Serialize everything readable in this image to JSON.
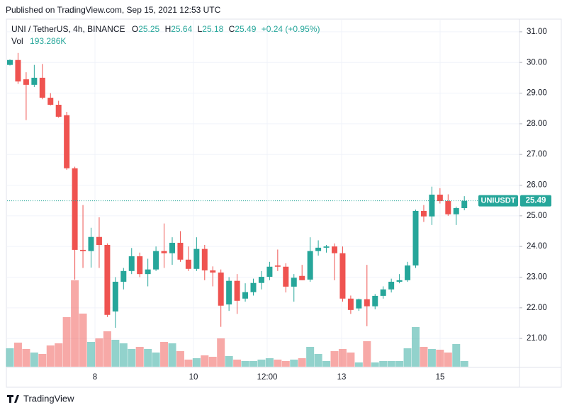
{
  "published": "Published on TradingView.com, Sep 15, 2021 12:53 UTC",
  "footer": "TradingView",
  "chart_data": {
    "type": "candlestick",
    "title": "UNI / TetherUS, 4h, BINANCE",
    "legend": [
      {
        "label": "O",
        "value": 25.25
      },
      {
        "label": "H",
        "value": 25.64
      },
      {
        "label": "L",
        "value": 25.18
      },
      {
        "label": "C",
        "value": 25.49
      }
    ],
    "change": "+0.24 (+0.95%)",
    "up_color": "#26a69a",
    "down_color": "#ef5350",
    "grid": true,
    "ylim": [
      20.08,
      31.39
    ],
    "yticks": [
      {
        "value": 21,
        "label": "21.00"
      },
      {
        "value": 22,
        "label": "22.00"
      },
      {
        "value": 23,
        "label": "23.00"
      },
      {
        "value": 24,
        "label": "24.00"
      },
      {
        "value": 25,
        "label": "25.00"
      },
      {
        "value": 26,
        "label": "26.00"
      },
      {
        "value": 27,
        "label": "27.00"
      },
      {
        "value": 28,
        "label": "28.00"
      },
      {
        "value": 29,
        "label": "29.00"
      },
      {
        "value": 30,
        "label": "30.00"
      },
      {
        "value": 31,
        "label": "31.00"
      }
    ],
    "xlabels": [
      "8",
      "10",
      "12:00",
      "13",
      "15"
    ],
    "symbol": "UNIUSDT",
    "last_price": 25.49,
    "open": [
      29.92,
      30.08,
      29.45,
      29.27,
      29.5,
      28.85,
      28.62,
      28.28,
      26.55,
      23.89,
      23.85,
      24.31,
      24.05,
      21.88,
      22.85,
      23.2,
      23.68,
      23.1,
      23.25,
      23.85,
      23.78,
      24.12,
      23.57,
      23.27,
      23.92,
      23.22,
      23.15,
      22.11,
      22.88,
      22.3,
      22.51,
      22.81,
      23.01,
      23.38,
      23.34,
      22.69,
      23.04,
      22.92,
      23.85,
      23.96,
      24.0,
      23.78,
      22.3,
      21.98,
      22.28,
      22.05,
      22.39,
      22.6,
      22.85,
      22.9,
      23.38,
      25.16,
      24.98,
      25.69,
      25.48,
      25.05,
      25.25
    ],
    "high": [
      30.1,
      30.31,
      29.68,
      29.92,
      29.95,
      29.0,
      28.75,
      28.39,
      26.6,
      25.35,
      24.61,
      24.95,
      24.1,
      23.0,
      23.3,
      23.95,
      23.8,
      23.6,
      24.0,
      24.75,
      24.3,
      24.5,
      24.0,
      24.3,
      24.05,
      23.35,
      23.25,
      23.0,
      23.1,
      22.8,
      22.95,
      23.2,
      23.5,
      23.9,
      23.45,
      23.1,
      23.4,
      24.3,
      24.2,
      24.05,
      24.1,
      24.0,
      22.4,
      22.3,
      23.4,
      22.45,
      22.7,
      22.95,
      23.1,
      23.5,
      25.2,
      25.35,
      25.95,
      25.9,
      25.7,
      25.3,
      25.64
    ],
    "low": [
      29.9,
      29.3,
      28.12,
      29.2,
      28.8,
      28.6,
      28.2,
      26.5,
      22.92,
      23.3,
      23.31,
      23.3,
      21.7,
      21.35,
      22.6,
      23.1,
      23.0,
      22.7,
      23.2,
      23.3,
      23.4,
      23.5,
      23.2,
      23.2,
      22.9,
      22.7,
      21.38,
      21.9,
      21.8,
      22.2,
      22.4,
      22.6,
      22.9,
      23.2,
      22.5,
      22.2,
      22.9,
      22.85,
      23.7,
      23.8,
      22.9,
      22.2,
      21.8,
      21.9,
      21.4,
      21.95,
      22.3,
      22.5,
      22.8,
      22.85,
      23.3,
      24.8,
      24.7,
      25.4,
      25.0,
      24.7,
      25.18
    ],
    "close": [
      30.08,
      29.38,
      29.27,
      29.5,
      28.85,
      28.62,
      28.23,
      26.55,
      23.89,
      23.85,
      24.31,
      24.05,
      21.77,
      22.85,
      23.2,
      23.68,
      23.1,
      23.25,
      23.85,
      23.78,
      24.12,
      23.57,
      23.27,
      23.92,
      23.22,
      23.15,
      22.07,
      22.88,
      22.23,
      22.51,
      22.81,
      23.01,
      23.34,
      23.34,
      22.69,
      22.98,
      22.9,
      23.85,
      23.96,
      24.0,
      23.78,
      22.3,
      21.93,
      22.28,
      22.05,
      22.39,
      22.6,
      22.85,
      22.9,
      23.38,
      25.16,
      24.98,
      25.69,
      25.48,
      25.05,
      25.25,
      25.49
    ],
    "volume": {
      "label": "Vol",
      "values": [
        629,
        823,
        605,
        484,
        436,
        726,
        799,
        1694,
        2952,
        1815,
        847,
        968,
        1210,
        920,
        799,
        605,
        678,
        605,
        484,
        847,
        799,
        532,
        242,
        290,
        387,
        339,
        968,
        363,
        242,
        194,
        194,
        242,
        290,
        242,
        194,
        242,
        290,
        678,
        436,
        194,
        532,
        605,
        484,
        145,
        871,
        145,
        194,
        194,
        194,
        629,
        1355,
        678,
        605,
        581,
        484,
        774,
        193.286
      ],
      "value_label": "193.286K"
    }
  }
}
